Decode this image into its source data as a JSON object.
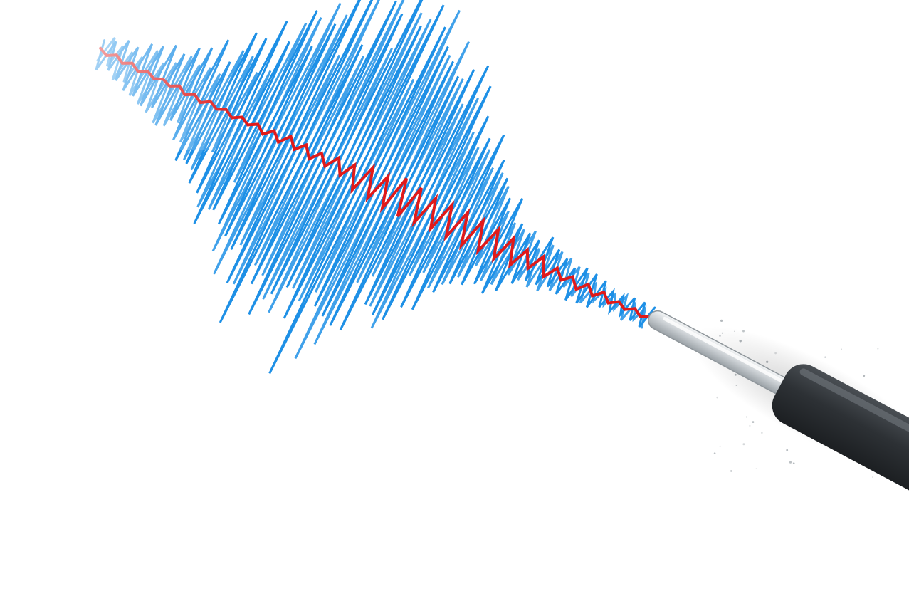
{
  "scene": {
    "subject": "seismograph",
    "background_color": "#ffffff",
    "trace_colors": {
      "amplitude_lines": "#1e90e6",
      "center_trace": "#e01a1a"
    },
    "pen": {
      "tip_color": "#d9dde0",
      "body_color": "#2d3135"
    }
  }
}
